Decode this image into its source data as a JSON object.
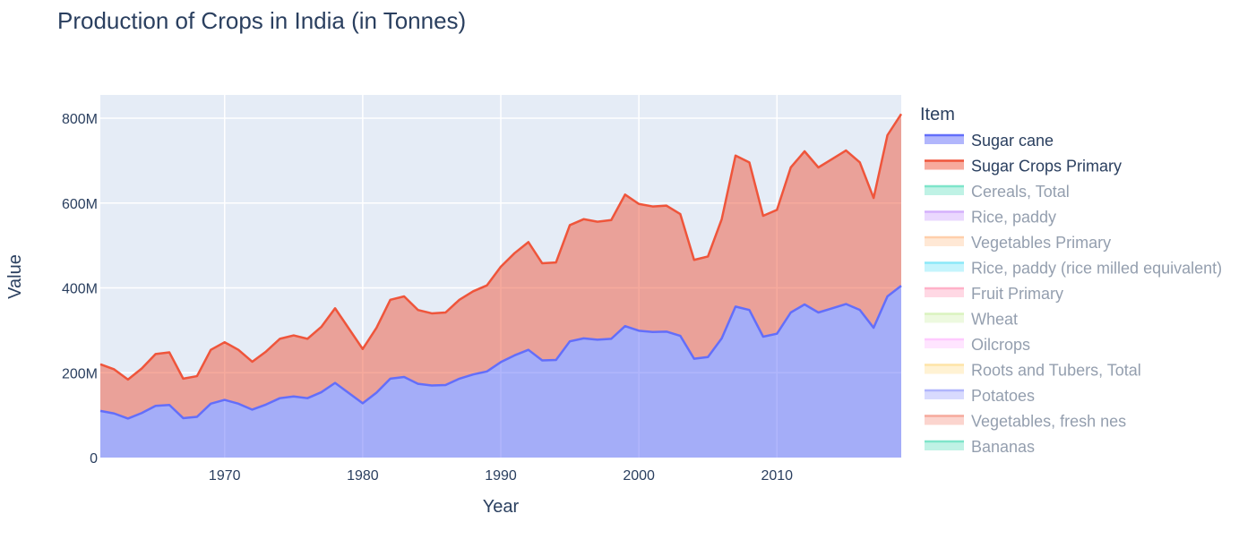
{
  "chart_data": {
    "type": "area",
    "title": "Production of Crops in India (in Tonnes)",
    "xlabel": "Year",
    "ylabel": "Value",
    "xlim": [
      1961,
      2019
    ],
    "ylim": [
      0,
      855000000
    ],
    "x_ticks": [
      1970,
      1980,
      1990,
      2000,
      2010
    ],
    "y_ticks": [
      0,
      200000000,
      400000000,
      600000000,
      800000000
    ],
    "y_tick_labels": [
      "0",
      "200M",
      "400M",
      "600M",
      "800M"
    ],
    "grid": true,
    "plot_background": "#e5ecf6",
    "legend_title": "Item",
    "legend_placement": "right",
    "x": [
      1961,
      1962,
      1963,
      1964,
      1965,
      1966,
      1967,
      1968,
      1969,
      1970,
      1971,
      1972,
      1973,
      1974,
      1975,
      1976,
      1977,
      1978,
      1979,
      1980,
      1981,
      1982,
      1983,
      1984,
      1985,
      1986,
      1987,
      1988,
      1989,
      1990,
      1991,
      1992,
      1993,
      1994,
      1995,
      1996,
      1997,
      1998,
      1999,
      2000,
      2001,
      2002,
      2003,
      2004,
      2005,
      2006,
      2007,
      2008,
      2009,
      2010,
      2011,
      2012,
      2013,
      2014,
      2015,
      2016,
      2017,
      2018,
      2019
    ],
    "series": [
      {
        "name": "Sugar cane",
        "color": "#636efa",
        "visible": true,
        "values": [
          110,
          104,
          92,
          105,
          122,
          124,
          93,
          96,
          127,
          136,
          127,
          113,
          125,
          140,
          144,
          140,
          154,
          176,
          152,
          128,
          153,
          186,
          190,
          174,
          170,
          171,
          186,
          196,
          203,
          225,
          241,
          254,
          229,
          230,
          274,
          281,
          278,
          280,
          310,
          299,
          296,
          297,
          287,
          233,
          237,
          281,
          356,
          348,
          285,
          292,
          342,
          361,
          342,
          352,
          362,
          348,
          306,
          380,
          405
        ]
      },
      {
        "name": "Sugar Crops Primary",
        "color": "#ef553b",
        "visible": true,
        "values": [
          110,
          104,
          92,
          105,
          122,
          124,
          93,
          96,
          127,
          136,
          127,
          113,
          125,
          140,
          144,
          140,
          154,
          176,
          152,
          128,
          153,
          186,
          190,
          174,
          170,
          171,
          186,
          196,
          203,
          225,
          241,
          254,
          229,
          230,
          274,
          281,
          278,
          280,
          310,
          299,
          296,
          297,
          287,
          233,
          237,
          281,
          356,
          348,
          285,
          292,
          342,
          361,
          342,
          352,
          362,
          348,
          306,
          380,
          405
        ]
      },
      {
        "name": "Cereals, Total",
        "color": "#00cc96",
        "visible": false
      },
      {
        "name": "Rice, paddy",
        "color": "#ab63fa",
        "visible": false
      },
      {
        "name": "Vegetables Primary",
        "color": "#ffa15a",
        "visible": false
      },
      {
        "name": "Rice, paddy (rice milled equivalent)",
        "color": "#19d3f3",
        "visible": false
      },
      {
        "name": "Fruit Primary",
        "color": "#ff6692",
        "visible": false
      },
      {
        "name": "Wheat",
        "color": "#b6e880",
        "visible": false
      },
      {
        "name": "Oilcrops",
        "color": "#ff97ff",
        "visible": false
      },
      {
        "name": "Roots and Tubers, Total",
        "color": "#fecb52",
        "visible": false
      },
      {
        "name": "Potatoes",
        "color": "#636efa",
        "visible": false
      },
      {
        "name": "Vegetables, fresh nes",
        "color": "#ef553b",
        "visible": false
      },
      {
        "name": "Bananas",
        "color": "#00cc96",
        "visible": false
      }
    ],
    "units": "millions of tonnes"
  }
}
